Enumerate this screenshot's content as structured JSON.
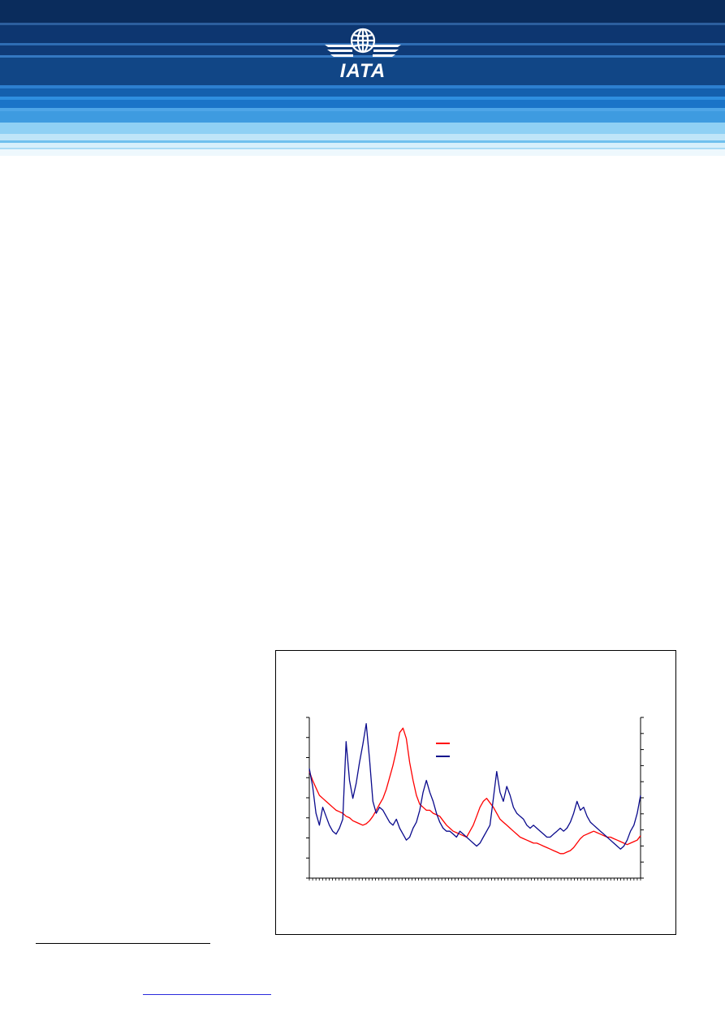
{
  "header": {
    "logo_text": "IATA",
    "logo_icon": "globe-wings-icon",
    "colors": {
      "dark_navy": "#0a2c5c",
      "mid_blue": "#1565c0",
      "light_blue": "#8fd0f4",
      "pale_blue": "#d6effb"
    }
  },
  "chart_data": {
    "type": "line",
    "dual_axis": true,
    "grid": false,
    "legend_position": "top-center",
    "series": [
      {
        "color": "#ff0000",
        "values": [
          66,
          60,
          55,
          50,
          48,
          46,
          44,
          42,
          40,
          39,
          38,
          36,
          35,
          33,
          32,
          31,
          30,
          31,
          33,
          36,
          40,
          44,
          48,
          54,
          62,
          70,
          80,
          92,
          95,
          88,
          72,
          60,
          50,
          44,
          42,
          40,
          40,
          38,
          37,
          36,
          33,
          30,
          28,
          26,
          25,
          24,
          23,
          22,
          26,
          30,
          36,
          42,
          46,
          48,
          45,
          42,
          38,
          34,
          32,
          30,
          28,
          26,
          24,
          22,
          21,
          20,
          19,
          18,
          18,
          17,
          16,
          15,
          14,
          13,
          12,
          11,
          11,
          12,
          13,
          15,
          18,
          21,
          23,
          24,
          25,
          26,
          25,
          24,
          23,
          22,
          22,
          21,
          20,
          19,
          18,
          17,
          18,
          19,
          20,
          23
        ]
      },
      {
        "color": "#0a0a8c",
        "values": [
          68,
          56,
          38,
          30,
          42,
          36,
          30,
          26,
          24,
          28,
          34,
          86,
          60,
          48,
          58,
          72,
          84,
          98,
          74,
          46,
          38,
          42,
          40,
          36,
          32,
          30,
          34,
          28,
          24,
          20,
          22,
          28,
          32,
          40,
          52,
          60,
          52,
          46,
          38,
          32,
          28,
          26,
          26,
          24,
          22,
          26,
          24,
          22,
          20,
          18,
          16,
          18,
          22,
          26,
          30,
          48,
          66,
          52,
          46,
          56,
          50,
          42,
          38,
          36,
          34,
          30,
          28,
          30,
          28,
          26,
          24,
          22,
          22,
          24,
          26,
          28,
          26,
          28,
          32,
          38,
          46,
          40,
          42,
          36,
          32,
          30,
          28,
          26,
          24,
          22,
          20,
          18,
          16,
          14,
          16,
          20,
          26,
          30,
          38,
          50
        ]
      }
    ],
    "y_ticks_left": 9,
    "y_ticks_right": 11
  }
}
